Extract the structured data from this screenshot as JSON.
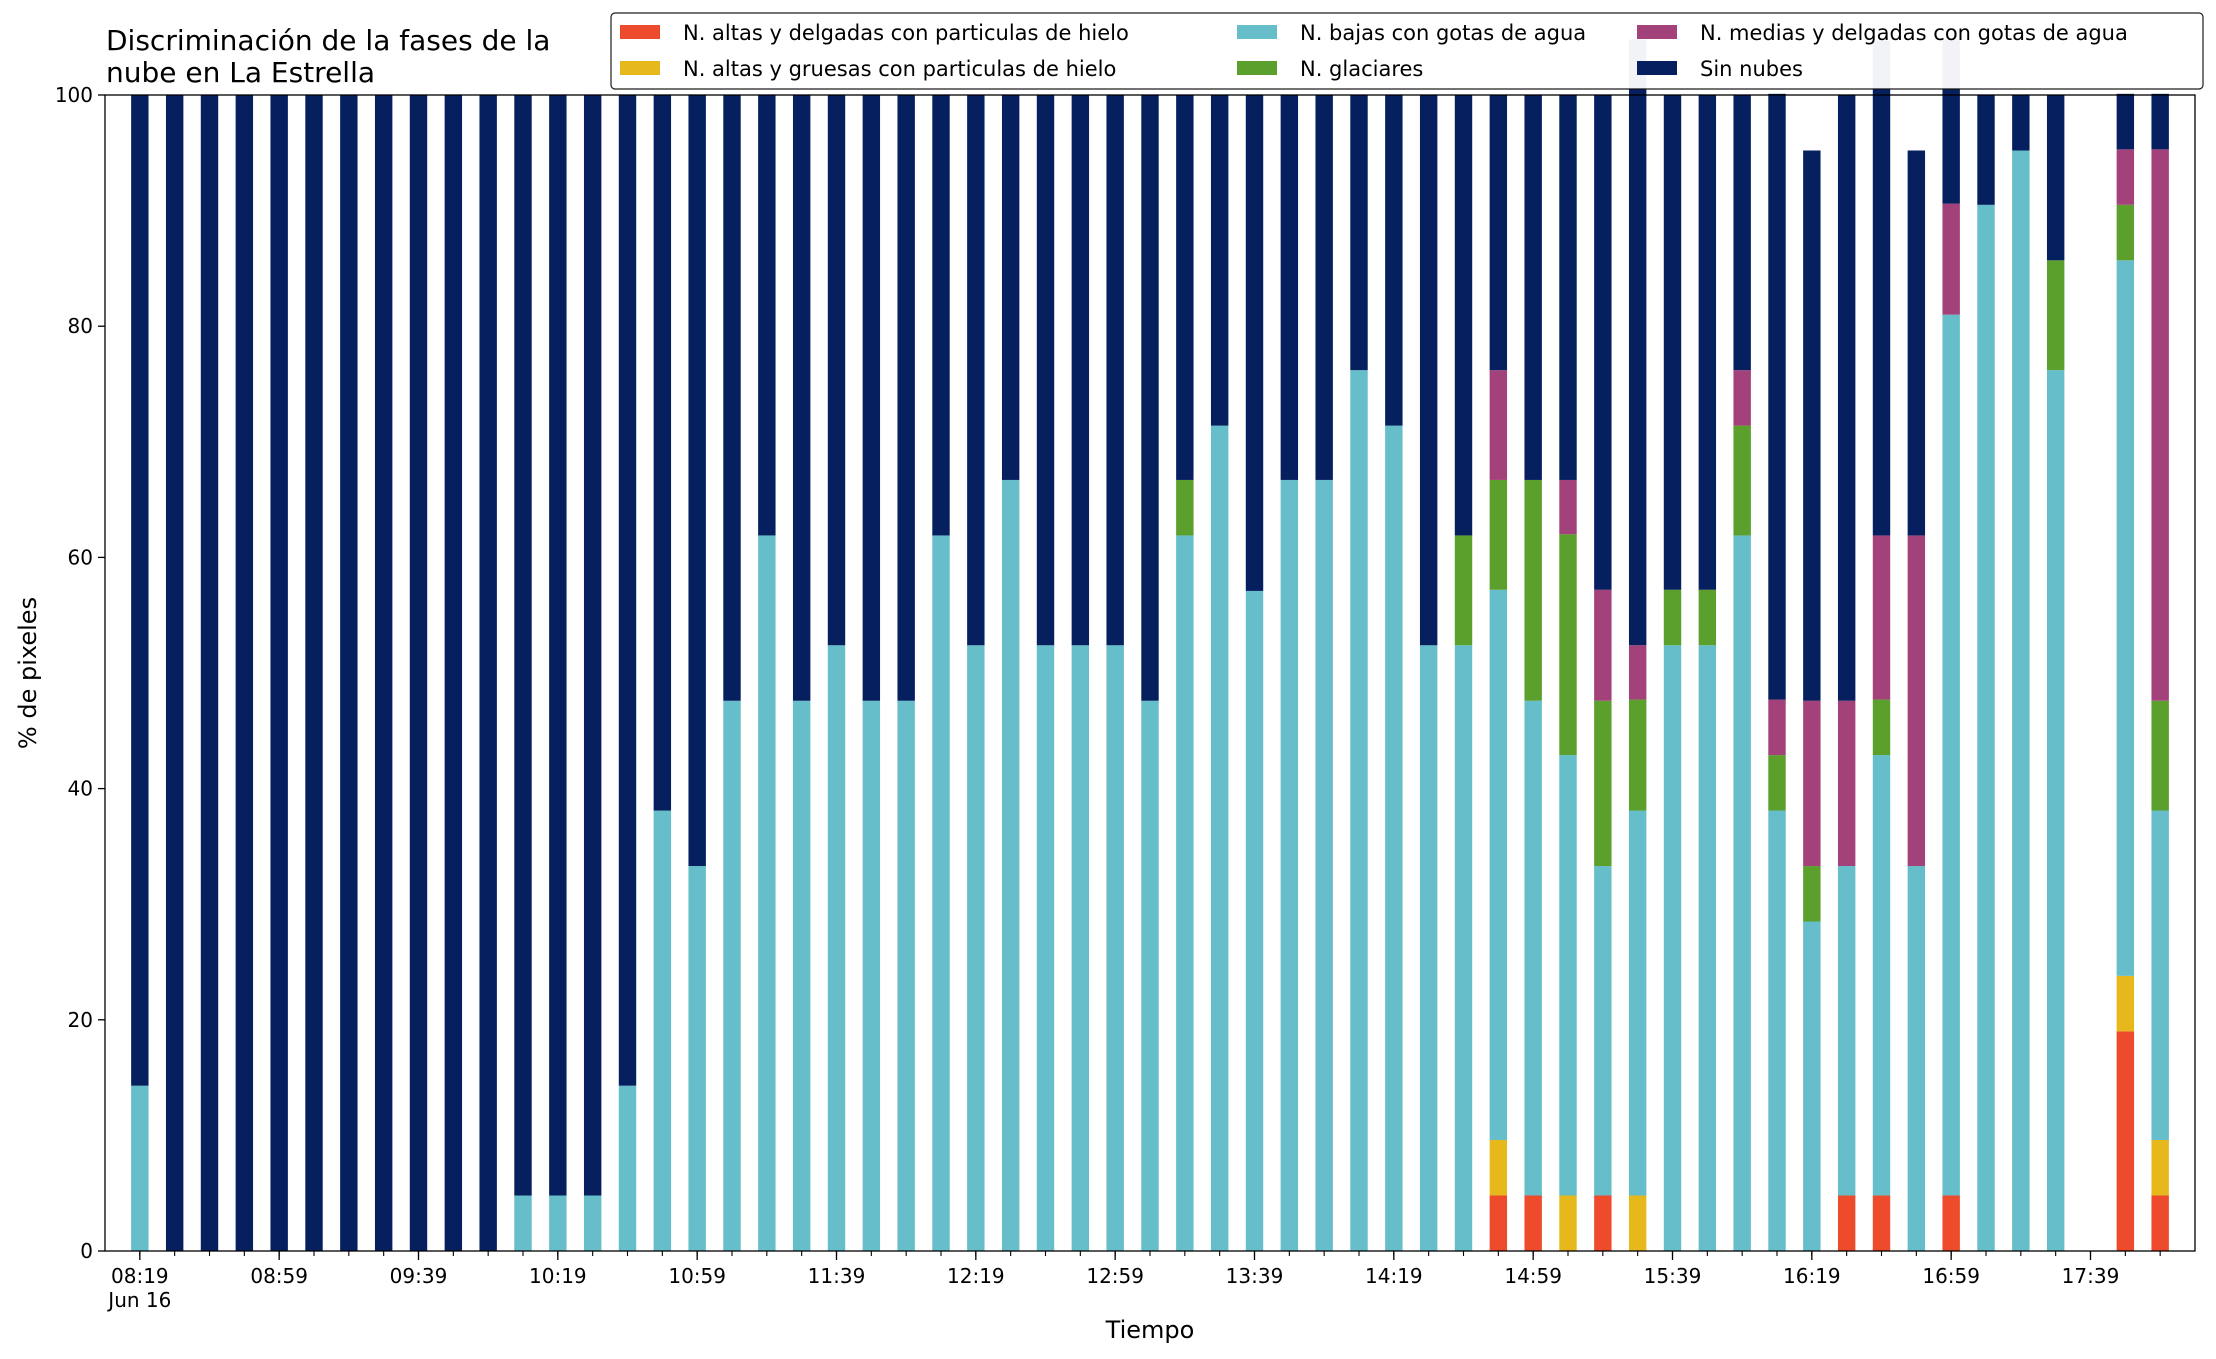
{
  "chart_data": {
    "type": "bar",
    "stacked": true,
    "title": "Discriminación de la fases de la\nnube en La Estrella",
    "xlabel": "Tiempo",
    "ylabel": "% de pixeles",
    "ylim": [
      0,
      100
    ],
    "yticks": [
      0,
      20,
      40,
      60,
      80,
      100
    ],
    "legend_position": "top-right",
    "xtick_labels": [
      {
        "index": 0,
        "label": "08:19",
        "sublabel": "Jun 16"
      },
      {
        "index": 4,
        "label": "08:59"
      },
      {
        "index": 8,
        "label": "09:39"
      },
      {
        "index": 12,
        "label": "10:19"
      },
      {
        "index": 16,
        "label": "10:59"
      },
      {
        "index": 20,
        "label": "11:39"
      },
      {
        "index": 24,
        "label": "12:19"
      },
      {
        "index": 28,
        "label": "12:59"
      },
      {
        "index": 32,
        "label": "13:39"
      },
      {
        "index": 36,
        "label": "14:19"
      },
      {
        "index": 40,
        "label": "14:59"
      },
      {
        "index": 44,
        "label": "15:39"
      },
      {
        "index": 48,
        "label": "16:19"
      },
      {
        "index": 52,
        "label": "16:59"
      },
      {
        "index": 56,
        "label": "17:39"
      }
    ],
    "series": [
      {
        "name": "N. altas y delgadas con particulas de hielo",
        "color": "#ee4a2c",
        "values": [
          0,
          0,
          0,
          0,
          0,
          0,
          0,
          0,
          0,
          0,
          0,
          0,
          0,
          0,
          0,
          0,
          0,
          0,
          0,
          0,
          0,
          0,
          0,
          0,
          0,
          0,
          0,
          0,
          0,
          0,
          0,
          0,
          0,
          0,
          0,
          0,
          0,
          0,
          0,
          4.8,
          4.8,
          0,
          4.8,
          0,
          0,
          0,
          0,
          0,
          0,
          4.8,
          4.8,
          0,
          4.8,
          0,
          0,
          0,
          0,
          19.0,
          4.8
        ]
      },
      {
        "name": "N. altas y gruesas con particulas de hielo",
        "color": "#e7b81c",
        "values": [
          0,
          0,
          0,
          0,
          0,
          0,
          0,
          0,
          0,
          0,
          0,
          0,
          0,
          0,
          0,
          0,
          0,
          0,
          0,
          0,
          0,
          0,
          0,
          0,
          0,
          0,
          0,
          0,
          0,
          0,
          0,
          0,
          0,
          0,
          0,
          0,
          0,
          0,
          0,
          4.8,
          0,
          4.8,
          0,
          4.8,
          0,
          0,
          0,
          0,
          0,
          0,
          0,
          0,
          0,
          0,
          0,
          0,
          0,
          4.8,
          4.8
        ]
      },
      {
        "name": "N. bajas con gotas de agua",
        "color": "#65bec9",
        "values": [
          14.3,
          0,
          0,
          0,
          0,
          0,
          0,
          0,
          0,
          0,
          0,
          4.8,
          4.8,
          4.8,
          14.3,
          38.1,
          33.3,
          47.6,
          61.9,
          47.6,
          52.4,
          47.6,
          47.6,
          61.9,
          52.4,
          66.7,
          52.4,
          52.4,
          52.4,
          47.6,
          61.9,
          71.4,
          57.1,
          66.7,
          66.7,
          76.2,
          71.4,
          52.4,
          52.4,
          47.6,
          42.8,
          38.1,
          28.5,
          33.3,
          52.4,
          52.4,
          61.9,
          38.1,
          28.5,
          28.5,
          38.1,
          33.3,
          76.2,
          90.5,
          95.2,
          76.2,
          0,
          61.9,
          28.5
        ]
      },
      {
        "name": "N. glaciares",
        "color": "#5b9f2c",
        "values": [
          0,
          0,
          0,
          0,
          0,
          0,
          0,
          0,
          0,
          0,
          0,
          0,
          0,
          0,
          0,
          0,
          0,
          0,
          0,
          0,
          0,
          0,
          0,
          0,
          0,
          0,
          0,
          0,
          0,
          0,
          4.8,
          0,
          0,
          0,
          0,
          0,
          0,
          0,
          9.5,
          9.5,
          19.1,
          19.1,
          14.3,
          9.6,
          4.8,
          4.8,
          9.5,
          4.8,
          4.8,
          0,
          4.8,
          0,
          0,
          0,
          0,
          9.5,
          0,
          4.8,
          9.5
        ]
      },
      {
        "name": "N. medias y delgadas con gotas de agua",
        "color": "#a3427a",
        "values": [
          0,
          0,
          0,
          0,
          0,
          0,
          0,
          0,
          0,
          0,
          0,
          0,
          0,
          0,
          0,
          0,
          0,
          0,
          0,
          0,
          0,
          0,
          0,
          0,
          0,
          0,
          0,
          0,
          0,
          0,
          0,
          0,
          0,
          0,
          0,
          0,
          0,
          0,
          0,
          9.5,
          0,
          4.7,
          9.6,
          4.7,
          0,
          0,
          4.8,
          4.8,
          14.3,
          14.3,
          14.2,
          28.6,
          9.6,
          0,
          0,
          0,
          0,
          4.8,
          47.7
        ]
      },
      {
        "name": "Sin nubes",
        "color": "#061f5e",
        "values": [
          85.7,
          100,
          100,
          100,
          100,
          100,
          100,
          100,
          100,
          100,
          100,
          95.2,
          95.2,
          95.2,
          85.7,
          61.9,
          66.7,
          52.4,
          38.1,
          52.4,
          47.6,
          52.4,
          52.4,
          38.1,
          47.6,
          33.3,
          47.6,
          47.6,
          47.6,
          52.4,
          33.3,
          28.6,
          42.9,
          33.3,
          33.3,
          23.8,
          28.6,
          47.6,
          38.1,
          23.8,
          33.3,
          33.3,
          42.8,
          52.4,
          42.8,
          42.8,
          23.8,
          52.4,
          47.6,
          52.4,
          42.8,
          33.3,
          14.2,
          9.5,
          4.8,
          14.3,
          0,
          4.8,
          4.8
        ]
      }
    ]
  }
}
